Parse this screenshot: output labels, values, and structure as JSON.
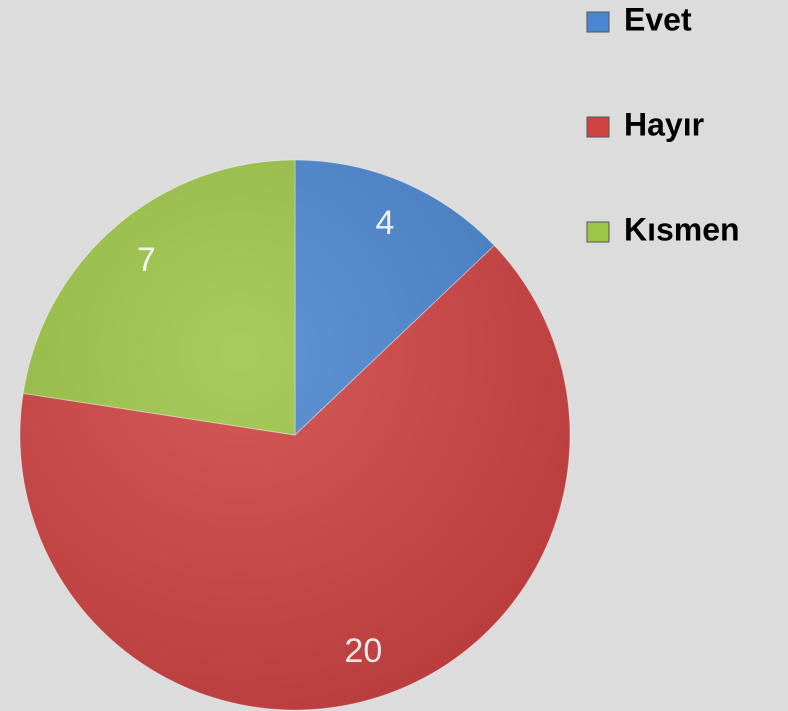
{
  "chart_data": {
    "type": "pie",
    "categories": [
      "Evet",
      "Hayır",
      "Kısmen"
    ],
    "values": [
      4,
      20,
      7
    ],
    "colors": [
      "#4a86d0",
      "#d04343",
      "#9cc647"
    ],
    "legend": "top-right"
  }
}
